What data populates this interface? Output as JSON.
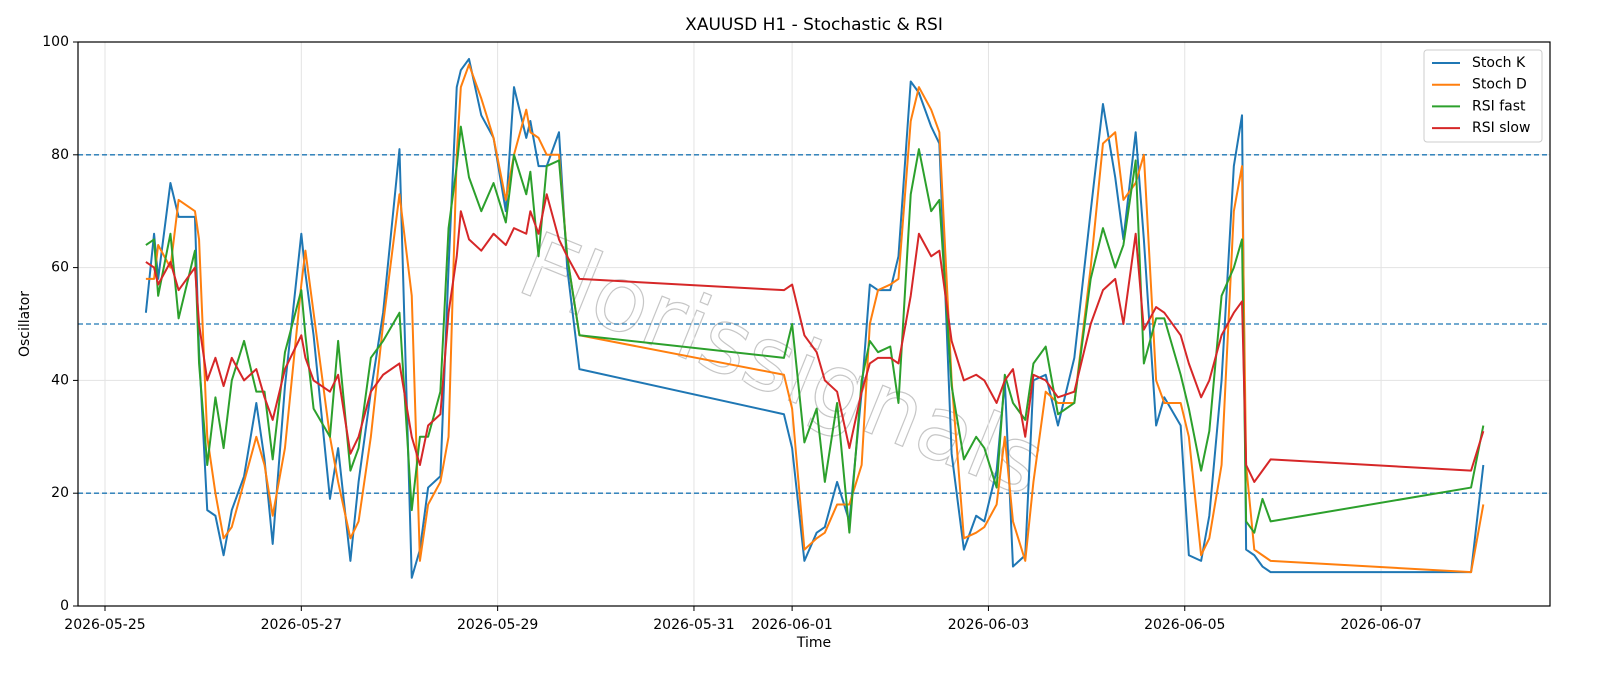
{
  "chart_data": {
    "type": "line",
    "title": "XAUUSD H1 - Stochastic & RSI",
    "xlabel": "Time",
    "ylabel": "Oscillator",
    "watermark": "Florissignals",
    "grid": true,
    "legend": "upper right",
    "ylim": [
      0,
      100
    ],
    "yticks": [
      0,
      20,
      40,
      60,
      80,
      100
    ],
    "hlines": [
      20,
      50,
      80
    ],
    "hline_color": "#1f77b4",
    "xlim": [
      "2026-05-24 17:24",
      "2026-06-08 17:18"
    ],
    "xticks": [
      "2026-05-25",
      "2026-05-27",
      "2026-05-29",
      "2026-05-31",
      "2026-06-01",
      "2026-06-03",
      "2026-06-05",
      "2026-06-07"
    ],
    "x": [
      "2026-05-25 10:00",
      "2026-05-25 12:00",
      "2026-05-25 13:00",
      "2026-05-25 16:00",
      "2026-05-25 18:00",
      "2026-05-25 22:00",
      "2026-05-25 23:00",
      "2026-05-26 01:00",
      "2026-05-26 03:00",
      "2026-05-26 05:00",
      "2026-05-26 07:00",
      "2026-05-26 10:00",
      "2026-05-26 13:00",
      "2026-05-26 15:00",
      "2026-05-26 17:00",
      "2026-05-26 20:00",
      "2026-05-27 00:00",
      "2026-05-27 01:00",
      "2026-05-27 03:00",
      "2026-05-27 07:00",
      "2026-05-27 09:00",
      "2026-05-27 12:00",
      "2026-05-27 14:00",
      "2026-05-27 17:00",
      "2026-05-27 20:00",
      "2026-05-28 00:00",
      "2026-05-28 03:00",
      "2026-05-28 05:00",
      "2026-05-28 07:00",
      "2026-05-28 10:00",
      "2026-05-28 12:00",
      "2026-05-28 14:00",
      "2026-05-28 15:00",
      "2026-05-28 17:00",
      "2026-05-28 20:00",
      "2026-05-28 23:00",
      "2026-05-29 02:00",
      "2026-05-29 04:00",
      "2026-05-29 07:00",
      "2026-05-29 08:00",
      "2026-05-29 10:00",
      "2026-05-29 12:00",
      "2026-05-29 15:00",
      "2026-05-29 17:00",
      "2026-05-29 20:00",
      "2026-05-31 22:00",
      "2026-06-01 00:00",
      "2026-06-01 03:00",
      "2026-06-01 06:00",
      "2026-06-01 08:00",
      "2026-06-01 11:00",
      "2026-06-01 14:00",
      "2026-06-01 17:00",
      "2026-06-01 19:00",
      "2026-06-01 21:00",
      "2026-06-02 00:00",
      "2026-06-02 02:00",
      "2026-06-02 05:00",
      "2026-06-02 07:00",
      "2026-06-02 10:00",
      "2026-06-02 12:00",
      "2026-06-02 15:00",
      "2026-06-02 18:00",
      "2026-06-02 21:00",
      "2026-06-02 23:00",
      "2026-06-03 02:00",
      "2026-06-03 04:00",
      "2026-06-03 06:00",
      "2026-06-03 09:00",
      "2026-06-03 11:00",
      "2026-06-03 14:00",
      "2026-06-03 17:00",
      "2026-06-03 21:00",
      "2026-06-04 01:00",
      "2026-06-04 04:00",
      "2026-06-04 07:00",
      "2026-06-04 09:00",
      "2026-06-04 12:00",
      "2026-06-04 14:00",
      "2026-06-04 17:00",
      "2026-06-04 19:00",
      "2026-06-04 23:00",
      "2026-06-05 01:00",
      "2026-06-05 04:00",
      "2026-06-05 06:00",
      "2026-06-05 09:00",
      "2026-06-05 12:00",
      "2026-06-05 14:00",
      "2026-06-05 15:00",
      "2026-06-05 17:00",
      "2026-06-05 19:00",
      "2026-06-05 21:00",
      "2026-06-07 22:00",
      "2026-06-08 01:00"
    ],
    "series": [
      {
        "name": "Stoch K",
        "color": "#1f77b4",
        "values": [
          52,
          66,
          58,
          75,
          69,
          69,
          45,
          17,
          16,
          9,
          17,
          23,
          36,
          26,
          11,
          39,
          66,
          59,
          48,
          19,
          28,
          8,
          22,
          38,
          52,
          81,
          5,
          10,
          21,
          23,
          60,
          92,
          95,
          97,
          87,
          83,
          70,
          92,
          83,
          86,
          78,
          78,
          84,
          60,
          42,
          34,
          28,
          8,
          13,
          14,
          22,
          15,
          38,
          57,
          56,
          56,
          62,
          93,
          91,
          85,
          82,
          27,
          10,
          16,
          15,
          24,
          40,
          7,
          9,
          40,
          41,
          32,
          44,
          70,
          89,
          76,
          65,
          84,
          65,
          32,
          37,
          32,
          9,
          8,
          16,
          40,
          78,
          87,
          10,
          9,
          7,
          6,
          6,
          25
        ]
      },
      {
        "name": "Stoch D",
        "color": "#ff7f0e",
        "values": [
          58,
          58,
          64,
          60,
          72,
          70,
          65,
          30,
          20,
          12,
          14,
          22,
          30,
          25,
          16,
          28,
          57,
          63,
          52,
          30,
          22,
          12,
          15,
          30,
          50,
          73,
          55,
          8,
          18,
          22,
          30,
          80,
          92,
          96,
          90,
          83,
          72,
          80,
          88,
          84,
          83,
          80,
          80,
          62,
          48,
          41,
          35,
          10,
          12,
          13,
          18,
          18,
          25,
          50,
          56,
          57,
          58,
          86,
          92,
          88,
          84,
          40,
          12,
          13,
          14,
          18,
          30,
          15,
          8,
          22,
          38,
          36,
          36,
          60,
          82,
          84,
          72,
          75,
          80,
          40,
          36,
          36,
          30,
          9,
          12,
          25,
          70,
          78,
          25,
          10,
          9,
          8,
          6,
          18
        ]
      },
      {
        "name": "RSI fast",
        "color": "#2ca02c",
        "values": [
          64,
          65,
          55,
          66,
          51,
          63,
          43,
          25,
          37,
          28,
          40,
          47,
          38,
          38,
          26,
          45,
          56,
          48,
          35,
          30,
          47,
          24,
          28,
          44,
          47,
          52,
          17,
          30,
          30,
          38,
          67,
          78,
          85,
          76,
          70,
          75,
          68,
          80,
          73,
          77,
          62,
          78,
          79,
          62,
          48,
          44,
          50,
          29,
          35,
          22,
          36,
          13,
          40,
          47,
          45,
          46,
          36,
          73,
          81,
          70,
          72,
          39,
          26,
          30,
          28,
          21,
          41,
          36,
          33,
          43,
          46,
          34,
          36,
          58,
          67,
          60,
          64,
          79,
          43,
          51,
          51,
          41,
          35,
          24,
          31,
          55,
          60,
          65,
          15,
          13,
          19,
          15,
          21,
          32
        ]
      },
      {
        "name": "RSI slow",
        "color": "#d62728",
        "values": [
          61,
          60,
          57,
          61,
          56,
          60,
          50,
          40,
          44,
          39,
          44,
          40,
          42,
          37,
          33,
          42,
          48,
          44,
          40,
          38,
          41,
          27,
          30,
          38,
          41,
          43,
          30,
          25,
          32,
          34,
          52,
          62,
          70,
          65,
          63,
          66,
          64,
          67,
          66,
          70,
          66,
          73,
          65,
          62,
          58,
          56,
          57,
          48,
          45,
          40,
          38,
          28,
          38,
          43,
          44,
          44,
          43,
          55,
          66,
          62,
          63,
          47,
          40,
          41,
          40,
          36,
          40,
          42,
          30,
          41,
          40,
          37,
          38,
          50,
          56,
          58,
          50,
          66,
          49,
          53,
          52,
          48,
          43,
          37,
          40,
          48,
          52,
          54,
          25,
          22,
          24,
          26,
          24,
          31
        ]
      }
    ]
  }
}
